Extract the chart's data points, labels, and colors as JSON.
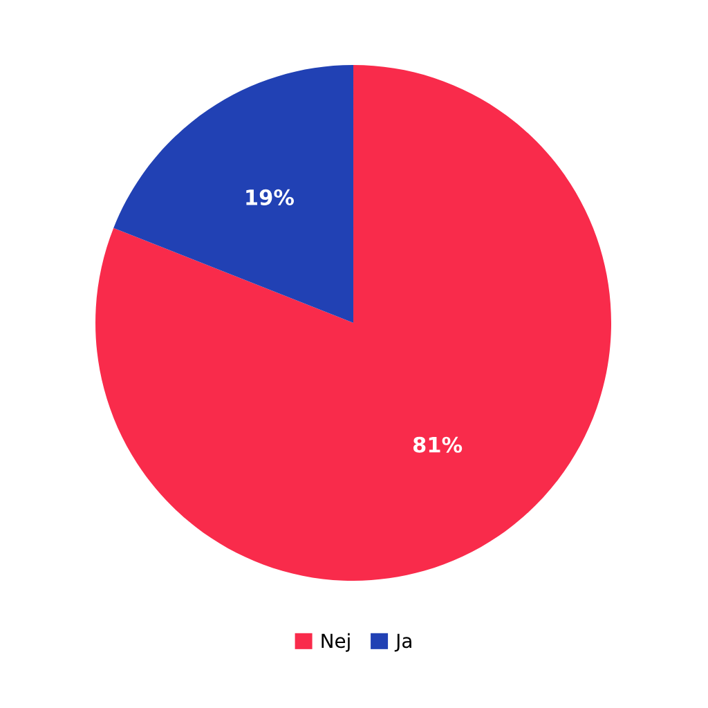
{
  "chart_data": {
    "type": "pie",
    "categories": [
      "Nej",
      "Ja"
    ],
    "values": [
      81,
      19
    ],
    "colors": [
      "#f92b4b",
      "#2141b4"
    ],
    "value_labels": [
      "81%",
      "19%"
    ],
    "legend": "bottom"
  }
}
